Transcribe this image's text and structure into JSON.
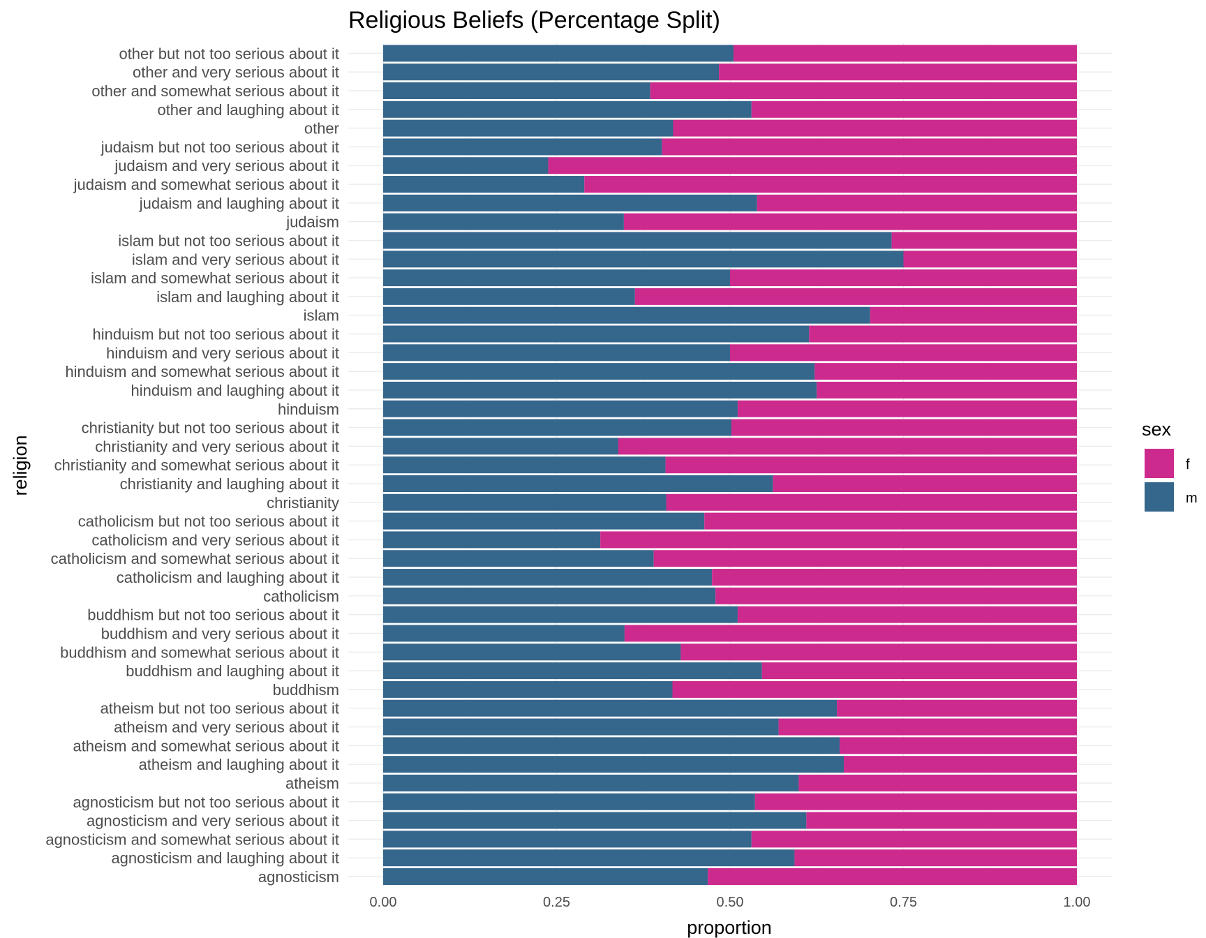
{
  "chart_data": {
    "type": "bar",
    "orientation": "horizontal",
    "stacked": "percent",
    "title": "Religious Beliefs (Percentage Split)",
    "xlabel": "proportion",
    "ylabel": "religion",
    "xlim": [
      0,
      1
    ],
    "x_ticks": [
      "0.00",
      "0.25",
      "0.50",
      "0.75",
      "1.00"
    ],
    "grid": true,
    "legend": {
      "title": "sex",
      "position": "right",
      "entries": [
        "f",
        "m"
      ]
    },
    "colors": {
      "f": "#CD2A8E",
      "m": "#35668C"
    },
    "categories": [
      "agnosticism",
      "agnosticism and laughing about it",
      "agnosticism and somewhat serious about it",
      "agnosticism and very serious about it",
      "agnosticism but not too serious about it",
      "atheism",
      "atheism and laughing about it",
      "atheism and somewhat serious about it",
      "atheism and very serious about it",
      "atheism but not too serious about it",
      "buddhism",
      "buddhism and laughing about it",
      "buddhism and somewhat serious about it",
      "buddhism and very serious about it",
      "buddhism but not too serious about it",
      "catholicism",
      "catholicism and laughing about it",
      "catholicism and somewhat serious about it",
      "catholicism and very serious about it",
      "catholicism but not too serious about it",
      "christianity",
      "christianity and laughing about it",
      "christianity and somewhat serious about it",
      "christianity and very serious about it",
      "christianity but not too serious about it",
      "hinduism",
      "hinduism and laughing about it",
      "hinduism and somewhat serious about it",
      "hinduism and very serious about it",
      "hinduism but not too serious about it",
      "islam",
      "islam and laughing about it",
      "islam and somewhat serious about it",
      "islam and very serious about it",
      "islam but not too serious about it",
      "judaism",
      "judaism and laughing about it",
      "judaism and somewhat serious about it",
      "judaism and very serious about it",
      "judaism but not too serious about it",
      "other",
      "other and laughing about it",
      "other and somewhat serious about it",
      "other and very serious about it",
      "other but not too serious about it"
    ],
    "series": [
      {
        "name": "m",
        "values": [
          0.468,
          0.593,
          0.531,
          0.61,
          0.536,
          0.599,
          0.664,
          0.658,
          0.57,
          0.654,
          0.417,
          0.546,
          0.429,
          0.348,
          0.511,
          0.479,
          0.474,
          0.39,
          0.313,
          0.463,
          0.408,
          0.562,
          0.407,
          0.339,
          0.502,
          0.511,
          0.625,
          0.622,
          0.5,
          0.614,
          0.702,
          0.363,
          0.5,
          0.75,
          0.733,
          0.347,
          0.539,
          0.29,
          0.238,
          0.402,
          0.418,
          0.531,
          0.385,
          0.484,
          0.505
        ]
      },
      {
        "name": "f",
        "values": [
          0.532,
          0.407,
          0.469,
          0.39,
          0.464,
          0.401,
          0.336,
          0.342,
          0.43,
          0.346,
          0.583,
          0.454,
          0.571,
          0.652,
          0.489,
          0.521,
          0.526,
          0.61,
          0.687,
          0.537,
          0.592,
          0.438,
          0.593,
          0.661,
          0.498,
          0.489,
          0.375,
          0.378,
          0.5,
          0.386,
          0.298,
          0.637,
          0.5,
          0.25,
          0.267,
          0.653,
          0.461,
          0.71,
          0.762,
          0.598,
          0.582,
          0.469,
          0.615,
          0.516,
          0.495
        ]
      }
    ]
  }
}
